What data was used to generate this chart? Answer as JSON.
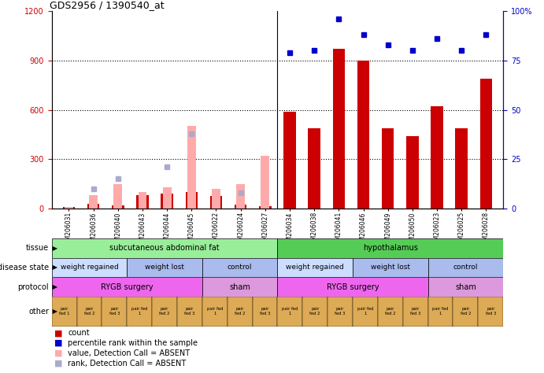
{
  "title": "GDS2956 / 1390540_at",
  "samples": [
    "GSM206031",
    "GSM206036",
    "GSM206040",
    "GSM206043",
    "GSM206044",
    "GSM206045",
    "GSM206022",
    "GSM206024",
    "GSM206027",
    "GSM206034",
    "GSM206038",
    "GSM206041",
    "GSM206046",
    "GSM206049",
    "GSM206050",
    "GSM206023",
    "GSM206025",
    "GSM206028"
  ],
  "n_samples": 18,
  "ylim_left": [
    0,
    1200
  ],
  "ylim_right": [
    0,
    100
  ],
  "yticks_left": [
    0,
    300,
    600,
    900,
    1200
  ],
  "yticks_left_labels": [
    "0",
    "300",
    "600",
    "900",
    "1200"
  ],
  "yticks_right": [
    0,
    25,
    50,
    75,
    100
  ],
  "yticks_right_labels": [
    "0",
    "25",
    "50",
    "75",
    "100%"
  ],
  "count_values": [
    10,
    30,
    20,
    80,
    90,
    100,
    75,
    25,
    15,
    590,
    490,
    970,
    900,
    490,
    440,
    620,
    490,
    790
  ],
  "percentile_values": [
    null,
    null,
    null,
    null,
    null,
    null,
    null,
    null,
    null,
    79,
    80,
    96,
    88,
    83,
    80,
    86,
    80,
    88
  ],
  "absent_value": [
    10,
    80,
    150,
    100,
    130,
    500,
    120,
    150,
    320,
    null,
    null,
    null,
    null,
    null,
    null,
    null,
    null,
    null
  ],
  "absent_rank": [
    null,
    10,
    15,
    null,
    21,
    38,
    null,
    8,
    null,
    null,
    null,
    null,
    null,
    null,
    null,
    null,
    null,
    null
  ],
  "count_color": "#cc0000",
  "percentile_color": "#0000cc",
  "absent_value_color": "#ffaaaa",
  "absent_rank_color": "#aaaacc",
  "bar_width": 0.5,
  "tissue_row": {
    "label": "tissue",
    "segments": [
      {
        "text": "subcutaneous abdominal fat",
        "start": 0,
        "end": 9,
        "color": "#99ee99"
      },
      {
        "text": "hypothalamus",
        "start": 9,
        "end": 18,
        "color": "#55cc55"
      }
    ]
  },
  "disease_row": {
    "label": "disease state",
    "segments": [
      {
        "text": "weight regained",
        "start": 0,
        "end": 3,
        "color": "#ccddff"
      },
      {
        "text": "weight lost",
        "start": 3,
        "end": 6,
        "color": "#aabbee"
      },
      {
        "text": "control",
        "start": 6,
        "end": 9,
        "color": "#aabbee"
      },
      {
        "text": "weight regained",
        "start": 9,
        "end": 12,
        "color": "#ccddff"
      },
      {
        "text": "weight lost",
        "start": 12,
        "end": 15,
        "color": "#aabbee"
      },
      {
        "text": "control",
        "start": 15,
        "end": 18,
        "color": "#aabbee"
      }
    ]
  },
  "protocol_row": {
    "label": "protocol",
    "segments": [
      {
        "text": "RYGB surgery",
        "start": 0,
        "end": 6,
        "color": "#ee66ee"
      },
      {
        "text": "sham",
        "start": 6,
        "end": 9,
        "color": "#dd99dd"
      },
      {
        "text": "RYGB surgery",
        "start": 9,
        "end": 15,
        "color": "#ee66ee"
      },
      {
        "text": "sham",
        "start": 15,
        "end": 18,
        "color": "#dd99dd"
      }
    ]
  },
  "other_labels": [
    "pair\nfed 1",
    "pair\nfed 2",
    "pair\nfed 3",
    "pair fed\n1",
    "pair\nfed 2",
    "pair\nfed 3",
    "pair fed\n1",
    "pair\nfed 2",
    "pair\nfed 3",
    "pair fed\n1",
    "pair\nfed 2",
    "pair\nfed 3",
    "pair fed\n1",
    "pair\nfed 2",
    "pair\nfed 3",
    "pair fed\n1",
    "pair\nfed 2",
    "pair\nfed 3"
  ],
  "other_color": "#ddaa55",
  "legend_items": [
    {
      "label": "count",
      "color": "#cc0000"
    },
    {
      "label": "percentile rank within the sample",
      "color": "#0000cc"
    },
    {
      "label": "value, Detection Call = ABSENT",
      "color": "#ffaaaa"
    },
    {
      "label": "rank, Detection Call = ABSENT",
      "color": "#aaaacc"
    }
  ],
  "fig_width": 6.91,
  "fig_height": 4.74,
  "dpi": 100
}
